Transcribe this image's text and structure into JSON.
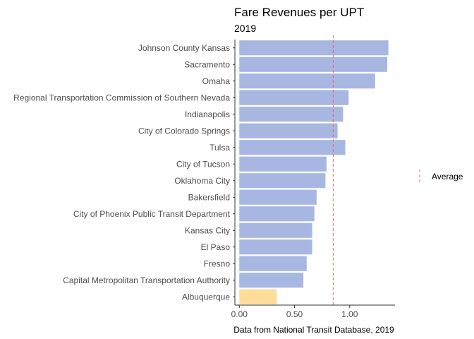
{
  "chart_data": {
    "type": "bar",
    "orientation": "horizontal",
    "title": "Fare Revenues per UPT",
    "subtitle": "2019",
    "caption": "Data from National Transit Database, 2019",
    "categories": [
      "Johnson County Kansas",
      "Sacramento",
      "Omaha",
      "Regional Transportation Commission of Southern Nevada",
      "Indianapolis",
      "City of Colorado Springs",
      "Tulsa",
      "City of Tucson",
      "Oklahoma City",
      "Bakersfield",
      "City of Phoenix Public Transit Department",
      "Kansas City",
      "El Paso",
      "Fresno",
      "Capital Metropolitan Transportation Authority",
      "Albuquerque"
    ],
    "values": [
      1.35,
      1.34,
      1.23,
      0.99,
      0.94,
      0.89,
      0.96,
      0.79,
      0.78,
      0.7,
      0.68,
      0.66,
      0.66,
      0.61,
      0.58,
      0.34
    ],
    "highlight": "Albuquerque",
    "xlim": [
      -0.04,
      1.41
    ],
    "xticks": [
      0,
      0.5,
      1.0
    ],
    "xtick_labels": [
      "0.00",
      "0.50",
      "1.00"
    ],
    "reference_line": {
      "label": "Average",
      "value": 0.85
    },
    "grid": false,
    "legend_position": "right",
    "colors": {
      "bar": "#a8b7e1",
      "highlight": "#fedc99",
      "reference": "#e06767",
      "axis": "#333333"
    }
  }
}
